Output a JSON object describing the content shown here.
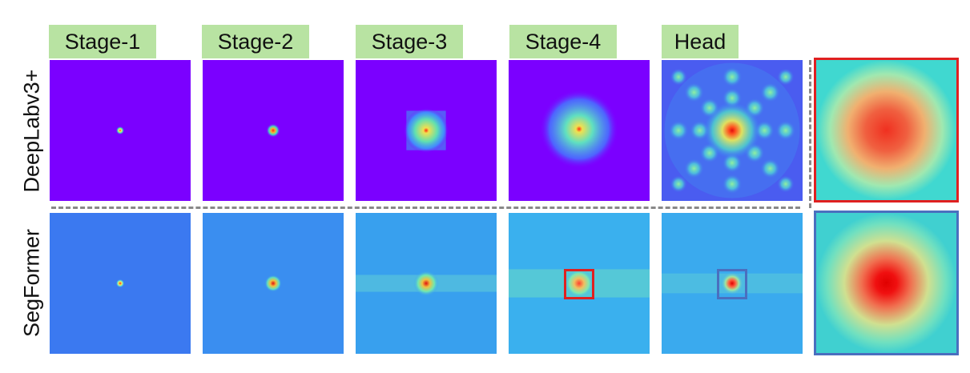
{
  "columns": [
    "Stage-1",
    "Stage-2",
    "Stage-3",
    "Stage-4",
    "Head"
  ],
  "rows": [
    "DeepLabv3+",
    "SegFormer"
  ],
  "colors": {
    "label_background": "#b8e3a2",
    "deeplab_background": "#7b00ff",
    "segformer_background": "#2fa4ec",
    "highlight_red": "#e02020",
    "highlight_blue": "#4a6fbf",
    "divider": "#888888"
  }
}
